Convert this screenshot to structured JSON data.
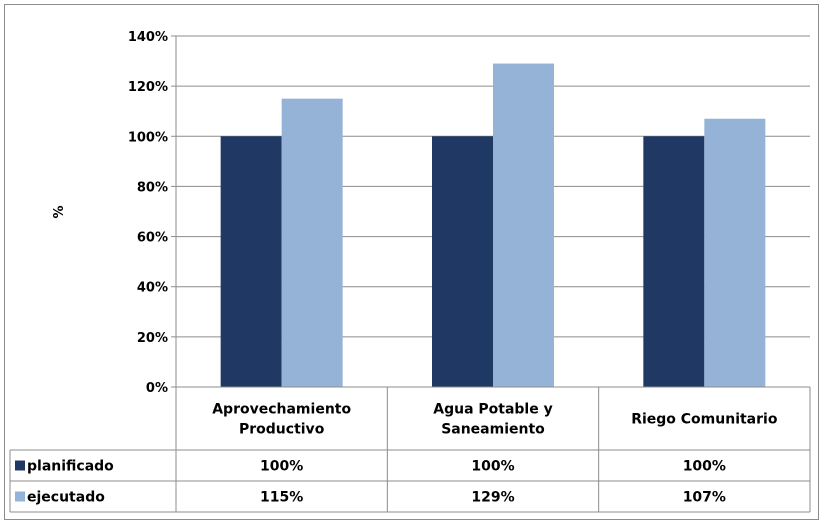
{
  "chart_data": {
    "type": "bar",
    "title": "",
    "xlabel": "",
    "ylabel": "%",
    "ylim": [
      0,
      140
    ],
    "yticks": [
      "0%",
      "20%",
      "40%",
      "60%",
      "80%",
      "100%",
      "120%",
      "140%"
    ],
    "categories": [
      [
        "Aprovechamiento",
        "Productivo"
      ],
      [
        "Agua Potable y",
        "Saneamiento"
      ],
      [
        "Riego Comunitario"
      ]
    ],
    "series": [
      {
        "name": "planificado",
        "values": [
          100,
          100,
          100
        ],
        "labels": [
          "100%",
          "100%",
          "100%"
        ],
        "color": "#1f3864"
      },
      {
        "name": "ejecutado",
        "values": [
          115,
          129,
          107
        ],
        "labels": [
          "115%",
          "129%",
          "107%"
        ],
        "color": "#95b3d7"
      }
    ],
    "grid": true,
    "legend": "data-table"
  }
}
